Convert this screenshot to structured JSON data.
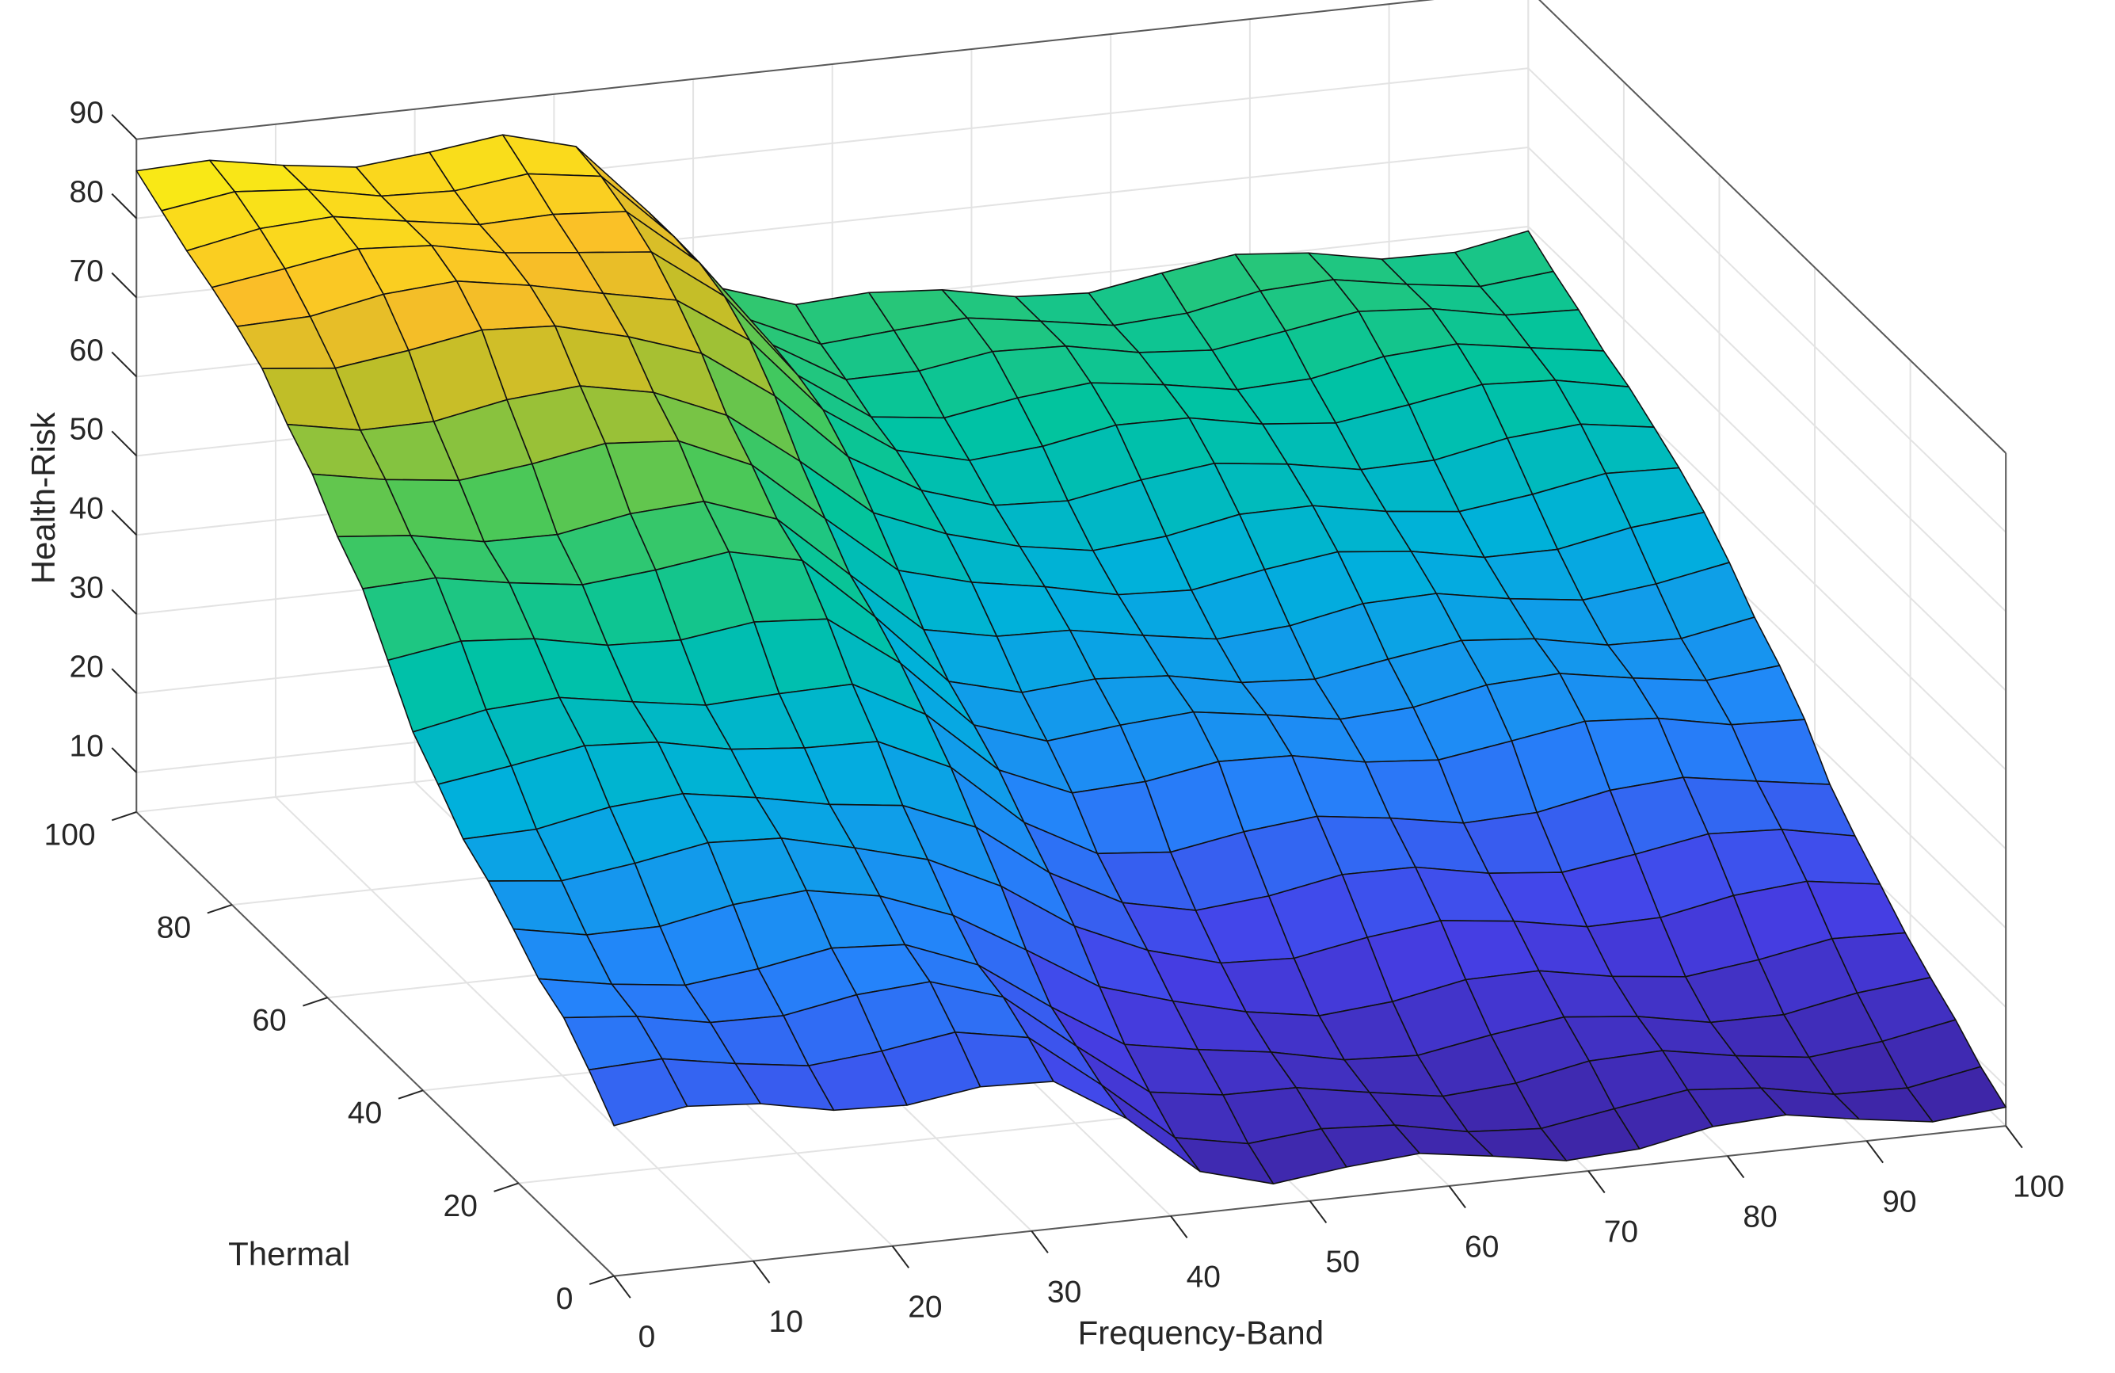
{
  "chart_data": {
    "type": "surface",
    "title": "",
    "xlabel": "Frequency-Band",
    "ylabel": "Thermal",
    "zlabel": "Health-Risk",
    "xlim": [
      0,
      100
    ],
    "ylim": [
      0,
      100
    ],
    "zlim": [
      5,
      90
    ],
    "xticks": [
      "0",
      "10",
      "20",
      "30",
      "40",
      "50",
      "60",
      "70",
      "80",
      "90",
      "100"
    ],
    "yticks": [
      "0",
      "20",
      "40",
      "60",
      "80",
      "100"
    ],
    "zticks": [
      "10",
      "20",
      "30",
      "40",
      "50",
      "60",
      "70",
      "80",
      "90"
    ],
    "grid": true,
    "colormap": "parula",
    "x": [
      0,
      5.26,
      10.53,
      15.79,
      21.05,
      26.32,
      31.58,
      36.84,
      42.11,
      47.37,
      52.63,
      57.89,
      63.16,
      68.42,
      73.68,
      78.95,
      84.21,
      89.47,
      94.74,
      100
    ],
    "y": [
      0,
      5.26,
      10.53,
      15.79,
      21.05,
      26.32,
      31.58,
      36.84,
      42.11,
      47.37,
      52.63,
      57.89,
      63.16,
      68.42,
      73.68,
      78.95,
      84.21,
      89.47,
      94.74,
      100
    ],
    "z_model": {
      "note_free": true,
      "left_region_max_x": 35,
      "transition_center_x": 38,
      "left_levels": [
        24,
        27,
        30,
        32,
        36,
        40,
        43,
        47,
        50,
        55,
        60,
        63,
        68,
        72,
        77,
        80,
        82,
        83,
        84,
        85
      ],
      "right_levels": [
        8,
        9,
        11,
        13,
        16,
        20,
        24,
        28,
        33,
        36,
        38,
        41,
        44,
        47,
        50,
        53,
        55,
        57,
        58,
        59
      ]
    }
  }
}
